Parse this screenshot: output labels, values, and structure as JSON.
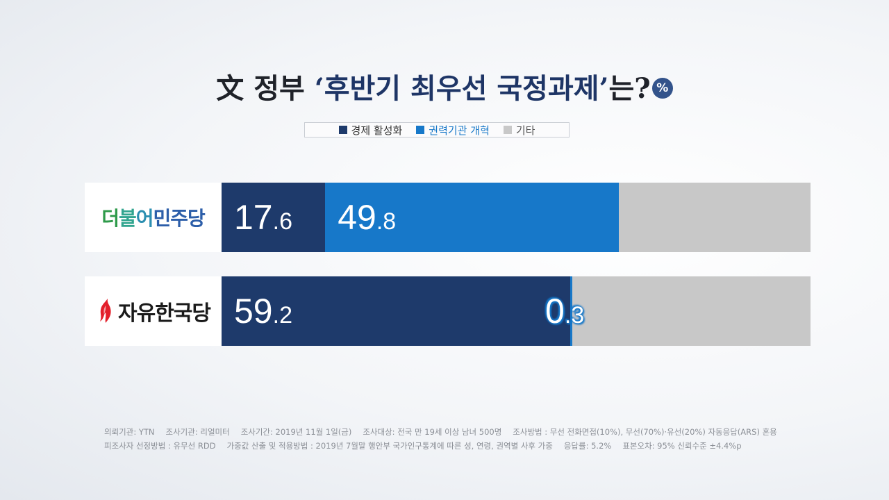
{
  "title": {
    "prefix": "文",
    "text1": "정부",
    "open_quote": "‘",
    "emphasis": "후반기 최우선 국정과제",
    "close_quote": "’",
    "tail": "는?",
    "unit": "%"
  },
  "legend": [
    {
      "label": "경제 활성화",
      "color": "#1e3a6b"
    },
    {
      "label": "권력기관 개혁",
      "color": "#1778c9"
    },
    {
      "label": "기타",
      "color": "#c8c8c8"
    }
  ],
  "rows": [
    {
      "party": "더불어민주당",
      "party_letters": [
        "더",
        "불",
        "어",
        "민주당"
      ],
      "values": [
        17.6,
        49.8
      ],
      "labels": [
        {
          "int": "17",
          "dec": ".6"
        },
        {
          "int": "49",
          "dec": ".8"
        }
      ]
    },
    {
      "party": "자유한국당",
      "values": [
        59.2,
        0.3
      ],
      "labels": [
        {
          "int": "59",
          "dec": ".2"
        },
        {
          "int": "0",
          "dec": ".3"
        }
      ]
    }
  ],
  "chart_data": {
    "type": "bar",
    "orientation": "horizontal-stacked",
    "categories": [
      "더불어민주당",
      "자유한국당"
    ],
    "series": [
      {
        "name": "경제 활성화",
        "values": [
          17.6,
          59.2
        ]
      },
      {
        "name": "권력기관 개혁",
        "values": [
          49.8,
          0.3
        ]
      },
      {
        "name": "기타",
        "values": [
          32.6,
          40.5
        ]
      }
    ],
    "xlim": [
      0,
      100
    ],
    "legend_position": "top"
  },
  "footer": {
    "line1": [
      "의뢰기관: YTN",
      "조사기관: 리얼미터",
      "조사기간: 2019년 11월 1일(금)",
      "조사대상: 전국 만 19세 이상 남녀 500명",
      "조사방법 : 무선 전화면접(10%), 무선(70%)·유선(20%) 자동응답(ARS) 혼용"
    ],
    "line2": [
      "피조사자 선정방법 : 유무선 RDD",
      "가중값 산출 및 적용방법 : 2019년 7월말 행안부 국가인구통계에 따른 성, 연령, 권역별 사후 가중",
      "응답률: 5.2%",
      "표본오차: 95% 신뢰수준 ±4.4%p"
    ]
  }
}
